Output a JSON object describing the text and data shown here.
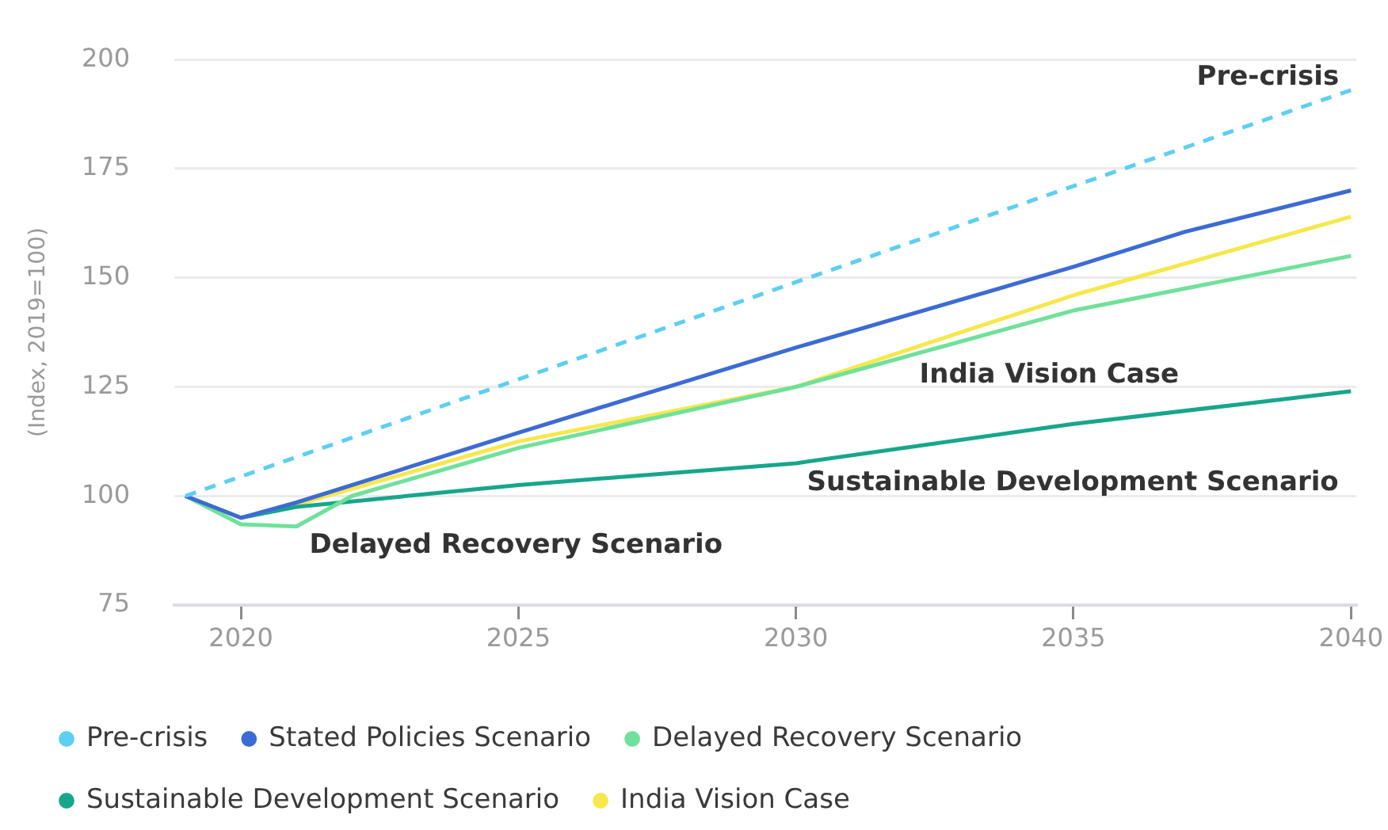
{
  "chart_data": {
    "type": "line",
    "ylabel": "(Index, 2019=100)",
    "xlim": [
      2018.8,
      2040.1
    ],
    "xticks": [
      2020,
      2025,
      2030,
      2035,
      2040
    ],
    "ylim": [
      75,
      200
    ],
    "yticks": [
      75,
      100,
      125,
      150,
      175,
      200
    ],
    "grid": "y",
    "legend": "bottom left",
    "marker": "none",
    "line_style": "solid",
    "series": [
      {
        "name": "Pre-crisis",
        "color": "#5ccff2",
        "line_style": "dashed",
        "x": [
          2019,
          2030,
          2040
        ],
        "values": [
          100,
          149,
          193
        ]
      },
      {
        "name": "Stated Policies Scenario",
        "color": "#3d6bd4",
        "x": [
          2019,
          2020,
          2021,
          2025,
          2030,
          2035,
          2037,
          2040
        ],
        "values": [
          100,
          95,
          98.5,
          114.5,
          134,
          152.5,
          160.5,
          170
        ]
      },
      {
        "name": "Delayed Recovery Scenario",
        "color": "#6fe19a",
        "x": [
          2019,
          2020,
          2021,
          2022,
          2025,
          2030,
          2035,
          2040
        ],
        "values": [
          100,
          93.5,
          93,
          100,
          111,
          125,
          142.5,
          155
        ]
      },
      {
        "name": "Sustainable Development Scenario",
        "color": "#17a68c",
        "x": [
          2019,
          2020,
          2021,
          2025,
          2030,
          2035,
          2040
        ],
        "values": [
          100,
          95,
          97.5,
          102.5,
          107.5,
          116.5,
          124
        ]
      },
      {
        "name": "India Vision Case",
        "color": "#f6e84c",
        "x": [
          2019,
          2020,
          2021,
          2025,
          2030,
          2035,
          2040
        ],
        "values": [
          100,
          95,
          98,
          112.5,
          125,
          146,
          164
        ]
      }
    ],
    "annotations": [
      "Pre-crisis",
      "India Vision Case",
      "Sustainable Development Scenario",
      "Delayed Recovery Scenario"
    ]
  }
}
